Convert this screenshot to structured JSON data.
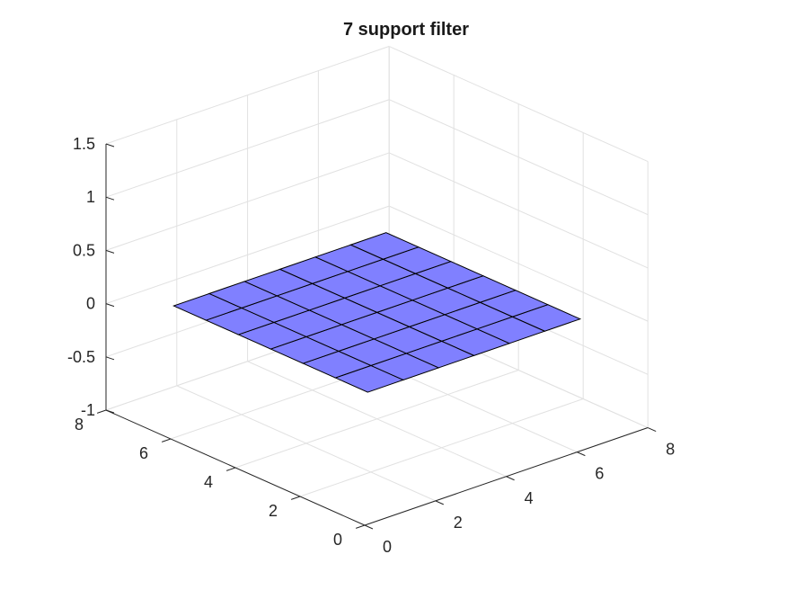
{
  "chart_data": {
    "type": "surface",
    "title": "7 support filter",
    "xlabel": "",
    "ylabel": "",
    "zlabel": "",
    "x": [
      1,
      2,
      3,
      4,
      5,
      6,
      7
    ],
    "y": [
      1,
      2,
      3,
      4,
      5,
      6,
      7
    ],
    "z": [
      [
        0,
        0,
        0,
        0,
        0,
        0,
        0
      ],
      [
        0,
        0,
        0,
        0,
        0,
        0,
        0
      ],
      [
        0,
        0,
        0,
        0,
        0,
        0,
        0
      ],
      [
        0,
        0,
        0,
        0,
        0,
        0,
        0
      ],
      [
        0,
        0,
        0,
        0,
        0,
        0,
        0
      ],
      [
        0,
        0,
        0,
        0,
        0,
        0,
        0
      ],
      [
        0,
        0,
        0,
        0,
        0,
        0,
        0
      ]
    ],
    "xlim": [
      0,
      8
    ],
    "ylim": [
      0,
      8
    ],
    "zlim": [
      -1,
      1.5
    ],
    "xticks": [
      "0",
      "2",
      "4",
      "6",
      "8"
    ],
    "yticks": [
      "0",
      "2",
      "4",
      "6",
      "8"
    ],
    "zticks": [
      "-1",
      "-0.5",
      "0",
      "0.5",
      "1",
      "1.5"
    ],
    "grid": true,
    "surface_color": "#8080ff",
    "edge_color": "#000000"
  }
}
